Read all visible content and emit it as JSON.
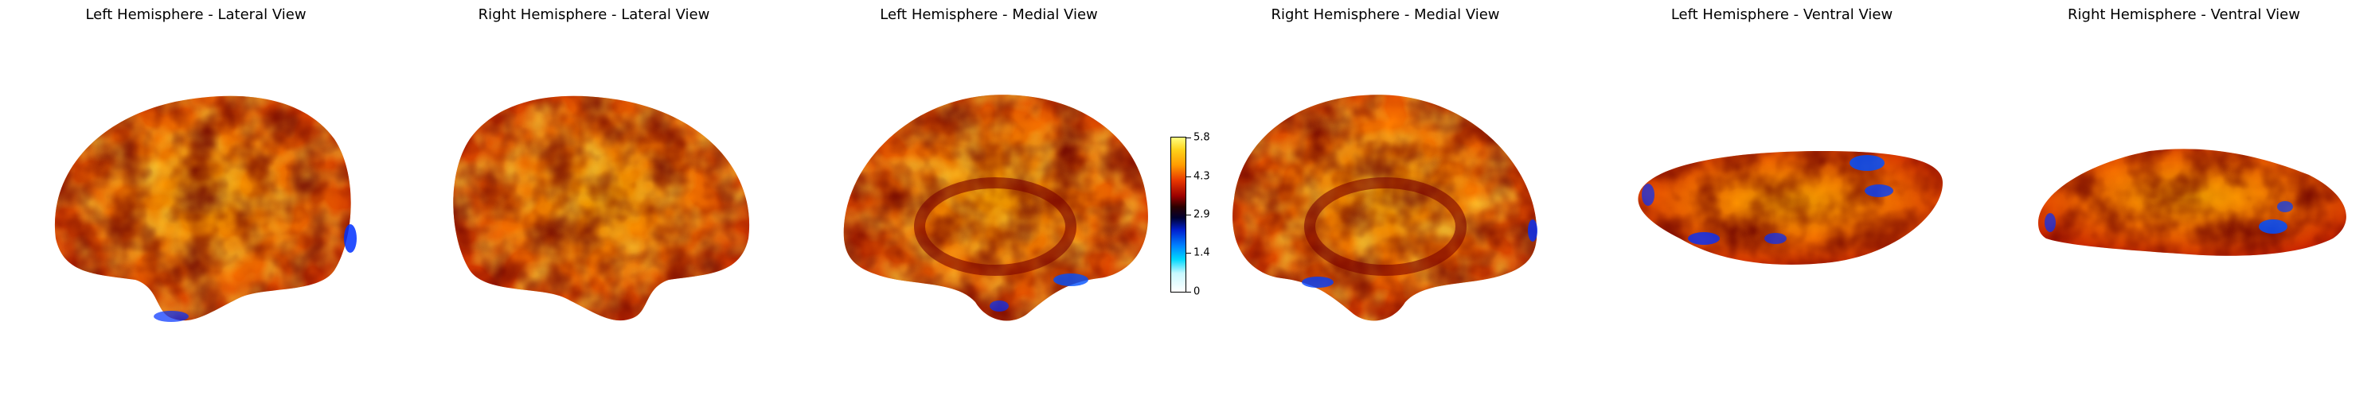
{
  "panels": [
    {
      "title": "Left Hemisphere - Lateral View"
    },
    {
      "title": "Right Hemisphere - Lateral View"
    },
    {
      "title": "Left Hemisphere - Medial View"
    },
    {
      "title": "Right Hemisphere - Medial View"
    },
    {
      "title": "Left Hemisphere - Ventral View"
    },
    {
      "title": "Right Hemisphere - Ventral View"
    }
  ],
  "colorbar": {
    "ticks": [
      "5.8",
      "4.3",
      "2.9",
      "1.4",
      "0"
    ],
    "colormap": "cold_hot",
    "colors": {
      "max": "#ffff80",
      "high": "#ff9b00",
      "mid": "#9b0000",
      "low": "#0020d0",
      "min": "#ffffff"
    }
  }
}
